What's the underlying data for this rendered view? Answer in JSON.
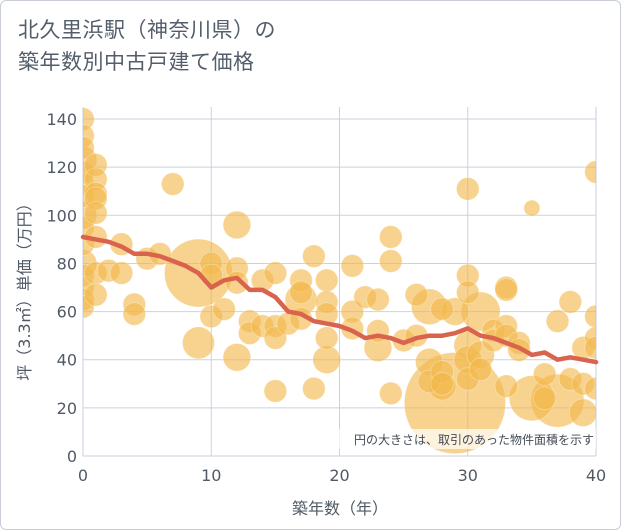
{
  "chart_data": {
    "type": "scatter",
    "title_lines": [
      "北久里浜駅（神奈川県）の",
      "築年数別中古戸建て価格"
    ],
    "xlabel": "築年数（年）",
    "ylabel": "坪（3.3㎡）単価（万円）",
    "xlim": [
      0,
      40
    ],
    "ylim": [
      0,
      145
    ],
    "xticks": [
      0,
      10,
      20,
      30,
      40
    ],
    "yticks": [
      0,
      20,
      40,
      60,
      80,
      100,
      120,
      140
    ],
    "grid": true,
    "note": "円の大きさは、取引のあった物件面積を示す",
    "colors": {
      "bubble": "#f2b84b",
      "trend": "#d9634d",
      "grid": "#c9d2de",
      "text": "#505a66"
    },
    "points": [
      {
        "x": 0,
        "y": 140,
        "s": 2
      },
      {
        "x": 0,
        "y": 133,
        "s": 2
      },
      {
        "x": 0,
        "y": 128,
        "s": 2
      },
      {
        "x": 0,
        "y": 123,
        "s": 3
      },
      {
        "x": 0,
        "y": 118,
        "s": 2
      },
      {
        "x": 0,
        "y": 113,
        "s": 2
      },
      {
        "x": 0,
        "y": 108,
        "s": 2
      },
      {
        "x": 0,
        "y": 100,
        "s": 3
      },
      {
        "x": 0,
        "y": 95,
        "s": 2
      },
      {
        "x": 0,
        "y": 88,
        "s": 2
      },
      {
        "x": 0,
        "y": 80,
        "s": 3
      },
      {
        "x": 0,
        "y": 75,
        "s": 2
      },
      {
        "x": 0,
        "y": 70,
        "s": 2
      },
      {
        "x": 0,
        "y": 65,
        "s": 2
      },
      {
        "x": 0,
        "y": 62,
        "s": 2
      },
      {
        "x": 1,
        "y": 121,
        "s": 2
      },
      {
        "x": 1,
        "y": 115,
        "s": 2
      },
      {
        "x": 1,
        "y": 109,
        "s": 2
      },
      {
        "x": 1,
        "y": 107,
        "s": 2
      },
      {
        "x": 1,
        "y": 101,
        "s": 2
      },
      {
        "x": 1,
        "y": 91,
        "s": 2
      },
      {
        "x": 1,
        "y": 76,
        "s": 2
      },
      {
        "x": 1,
        "y": 67,
        "s": 2
      },
      {
        "x": 2,
        "y": 77,
        "s": 2
      },
      {
        "x": 3,
        "y": 88,
        "s": 2
      },
      {
        "x": 3,
        "y": 76,
        "s": 2
      },
      {
        "x": 4,
        "y": 63,
        "s": 2
      },
      {
        "x": 4,
        "y": 59,
        "s": 2
      },
      {
        "x": 5,
        "y": 82,
        "s": 2
      },
      {
        "x": 6,
        "y": 84,
        "s": 2
      },
      {
        "x": 7,
        "y": 113,
        "s": 2
      },
      {
        "x": 9,
        "y": 76,
        "s": 18
      },
      {
        "x": 9,
        "y": 47,
        "s": 4
      },
      {
        "x": 10,
        "y": 80,
        "s": 2
      },
      {
        "x": 10,
        "y": 75,
        "s": 2
      },
      {
        "x": 10,
        "y": 58,
        "s": 2
      },
      {
        "x": 11,
        "y": 61,
        "s": 2
      },
      {
        "x": 12,
        "y": 96,
        "s": 3
      },
      {
        "x": 12,
        "y": 78,
        "s": 2
      },
      {
        "x": 12,
        "y": 72,
        "s": 2
      },
      {
        "x": 12,
        "y": 41,
        "s": 3
      },
      {
        "x": 13,
        "y": 56,
        "s": 2
      },
      {
        "x": 13,
        "y": 51,
        "s": 2
      },
      {
        "x": 14,
        "y": 73,
        "s": 2
      },
      {
        "x": 14,
        "y": 54,
        "s": 2
      },
      {
        "x": 15,
        "y": 76,
        "s": 2
      },
      {
        "x": 15,
        "y": 54,
        "s": 2
      },
      {
        "x": 15,
        "y": 49,
        "s": 2
      },
      {
        "x": 15,
        "y": 27,
        "s": 2
      },
      {
        "x": 16,
        "y": 55,
        "s": 2
      },
      {
        "x": 17,
        "y": 73,
        "s": 2
      },
      {
        "x": 17,
        "y": 68,
        "s": 2
      },
      {
        "x": 17,
        "y": 65,
        "s": 4
      },
      {
        "x": 17,
        "y": 57,
        "s": 2
      },
      {
        "x": 18,
        "y": 83,
        "s": 2
      },
      {
        "x": 18,
        "y": 28,
        "s": 2
      },
      {
        "x": 19,
        "y": 73,
        "s": 2
      },
      {
        "x": 19,
        "y": 64,
        "s": 2
      },
      {
        "x": 19,
        "y": 59,
        "s": 2
      },
      {
        "x": 19,
        "y": 49,
        "s": 2
      },
      {
        "x": 19,
        "y": 40,
        "s": 3
      },
      {
        "x": 21,
        "y": 79,
        "s": 2
      },
      {
        "x": 21,
        "y": 60,
        "s": 2
      },
      {
        "x": 21,
        "y": 53,
        "s": 2
      },
      {
        "x": 22,
        "y": 66,
        "s": 2
      },
      {
        "x": 23,
        "y": 65,
        "s": 2
      },
      {
        "x": 23,
        "y": 52,
        "s": 2
      },
      {
        "x": 23,
        "y": 45,
        "s": 3
      },
      {
        "x": 24,
        "y": 91,
        "s": 2
      },
      {
        "x": 24,
        "y": 81,
        "s": 2
      },
      {
        "x": 24,
        "y": 26,
        "s": 2
      },
      {
        "x": 25,
        "y": 48,
        "s": 2
      },
      {
        "x": 26,
        "y": 67,
        "s": 2
      },
      {
        "x": 26,
        "y": 50,
        "s": 2
      },
      {
        "x": 27,
        "y": 62,
        "s": 5
      },
      {
        "x": 27,
        "y": 39,
        "s": 3
      },
      {
        "x": 27,
        "y": 31,
        "s": 2
      },
      {
        "x": 28,
        "y": 61,
        "s": 2
      },
      {
        "x": 28,
        "y": 35,
        "s": 2
      },
      {
        "x": 28,
        "y": 30,
        "s": 2
      },
      {
        "x": 28,
        "y": 29,
        "s": 3
      },
      {
        "x": 29,
        "y": 60,
        "s": 3
      },
      {
        "x": 29,
        "y": 22,
        "s": 40
      },
      {
        "x": 30,
        "y": 111,
        "s": 2
      },
      {
        "x": 30,
        "y": 75,
        "s": 2
      },
      {
        "x": 30,
        "y": 68,
        "s": 2
      },
      {
        "x": 30,
        "y": 46,
        "s": 3
      },
      {
        "x": 30,
        "y": 40,
        "s": 3
      },
      {
        "x": 30,
        "y": 32,
        "s": 2
      },
      {
        "x": 31,
        "y": 60,
        "s": 6
      },
      {
        "x": 31,
        "y": 42,
        "s": 3
      },
      {
        "x": 31,
        "y": 36,
        "s": 2
      },
      {
        "x": 32,
        "y": 52,
        "s": 2
      },
      {
        "x": 32,
        "y": 48,
        "s": 2
      },
      {
        "x": 33,
        "y": 70,
        "s": 2
      },
      {
        "x": 33,
        "y": 69,
        "s": 2
      },
      {
        "x": 33,
        "y": 54,
        "s": 2
      },
      {
        "x": 33,
        "y": 50,
        "s": 2
      },
      {
        "x": 33,
        "y": 29,
        "s": 2
      },
      {
        "x": 34,
        "y": 47,
        "s": 2
      },
      {
        "x": 34,
        "y": 44,
        "s": 2
      },
      {
        "x": 35,
        "y": 103,
        "s": 1
      },
      {
        "x": 35,
        "y": 24,
        "s": 8
      },
      {
        "x": 36,
        "y": 34,
        "s": 2
      },
      {
        "x": 36,
        "y": 24,
        "s": 2
      },
      {
        "x": 37,
        "y": 56,
        "s": 2
      },
      {
        "x": 37,
        "y": 23,
        "s": 11
      },
      {
        "x": 38,
        "y": 64,
        "s": 2
      },
      {
        "x": 38,
        "y": 32,
        "s": 2
      },
      {
        "x": 39,
        "y": 45,
        "s": 2
      },
      {
        "x": 39,
        "y": 30,
        "s": 2
      },
      {
        "x": 39,
        "y": 18,
        "s": 3
      },
      {
        "x": 40,
        "y": 118,
        "s": 2
      },
      {
        "x": 40,
        "y": 58,
        "s": 2
      },
      {
        "x": 40,
        "y": 49,
        "s": 2
      },
      {
        "x": 40,
        "y": 45,
        "s": 2
      },
      {
        "x": 40,
        "y": 28,
        "s": 2
      }
    ],
    "trend": [
      {
        "x": 0,
        "y": 91
      },
      {
        "x": 1,
        "y": 90
      },
      {
        "x": 2,
        "y": 89
      },
      {
        "x": 3,
        "y": 87
      },
      {
        "x": 4,
        "y": 84
      },
      {
        "x": 5,
        "y": 84
      },
      {
        "x": 6,
        "y": 83
      },
      {
        "x": 7,
        "y": 81
      },
      {
        "x": 8,
        "y": 79
      },
      {
        "x": 9,
        "y": 76
      },
      {
        "x": 10,
        "y": 70
      },
      {
        "x": 11,
        "y": 73
      },
      {
        "x": 12,
        "y": 74
      },
      {
        "x": 13,
        "y": 69
      },
      {
        "x": 14,
        "y": 69
      },
      {
        "x": 15,
        "y": 66
      },
      {
        "x": 16,
        "y": 60
      },
      {
        "x": 17,
        "y": 59
      },
      {
        "x": 18,
        "y": 56
      },
      {
        "x": 19,
        "y": 55
      },
      {
        "x": 20,
        "y": 54
      },
      {
        "x": 21,
        "y": 52
      },
      {
        "x": 22,
        "y": 49
      },
      {
        "x": 23,
        "y": 50
      },
      {
        "x": 24,
        "y": 49
      },
      {
        "x": 25,
        "y": 47
      },
      {
        "x": 26,
        "y": 49
      },
      {
        "x": 27,
        "y": 50
      },
      {
        "x": 28,
        "y": 50
      },
      {
        "x": 29,
        "y": 51
      },
      {
        "x": 30,
        "y": 53
      },
      {
        "x": 31,
        "y": 50
      },
      {
        "x": 32,
        "y": 49
      },
      {
        "x": 33,
        "y": 47
      },
      {
        "x": 34,
        "y": 45
      },
      {
        "x": 35,
        "y": 42
      },
      {
        "x": 36,
        "y": 43
      },
      {
        "x": 37,
        "y": 40
      },
      {
        "x": 38,
        "y": 41
      },
      {
        "x": 39,
        "y": 40
      },
      {
        "x": 40,
        "y": 39
      }
    ]
  }
}
